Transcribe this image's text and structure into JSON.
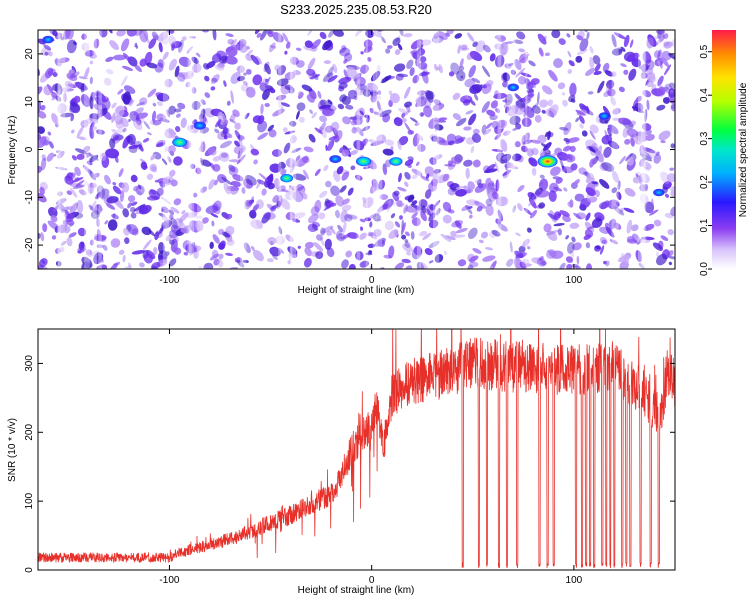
{
  "title": "S233.2025.235.08.53.R20",
  "colors": {
    "snr_line": "#e8302a",
    "frame": "#000000",
    "speckle_base": "#7a3cf0"
  },
  "chart_data": [
    {
      "type": "heatmap",
      "title": "S233.2025.235.08.53.R20",
      "xlabel": "Height of straight line (km)",
      "ylabel": "Frequency (Hz)",
      "xlim": [
        -165,
        150
      ],
      "ylim": [
        -25,
        25
      ],
      "xticks": [
        -100,
        0,
        100
      ],
      "yticks": [
        -20,
        -10,
        0,
        10,
        20
      ],
      "colorbar": {
        "label": "Normalized spectral amplitude",
        "range": [
          0.0,
          0.55
        ],
        "ticks": [
          0.0,
          0.1,
          0.2,
          0.3,
          0.4,
          0.5
        ],
        "tick_labels": [
          "0.0",
          "0.1",
          "0.2",
          "0.3",
          "0.4",
          "0.5"
        ],
        "placement": "right"
      },
      "hotspots": [
        {
          "x": -95,
          "y": 1.5,
          "value": 0.28
        },
        {
          "x": -4,
          "y": -2.5,
          "value": 0.3
        },
        {
          "x": 12,
          "y": -2.5,
          "value": 0.22
        },
        {
          "x": 87,
          "y": -2.5,
          "value": 0.5
        },
        {
          "x": -42,
          "y": -6,
          "value": 0.2
        },
        {
          "x": -85,
          "y": 5,
          "value": 0.18
        },
        {
          "x": -18,
          "y": -2,
          "value": 0.17
        },
        {
          "x": 70,
          "y": 13,
          "value": 0.15
        },
        {
          "x": 115,
          "y": 7,
          "value": 0.13
        },
        {
          "x": 142,
          "y": -9,
          "value": 0.14
        },
        {
          "x": -160,
          "y": 23,
          "value": 0.14
        }
      ]
    },
    {
      "type": "line",
      "xlabel": "Height of straight line (km)",
      "ylabel": "SNR (10 * v/v)",
      "xlim": [
        -165,
        150
      ],
      "ylim": [
        0,
        350
      ],
      "xticks": [
        -100,
        0,
        100
      ],
      "yticks": [
        0,
        100,
        200,
        300
      ],
      "trend": {
        "x": [
          -165,
          -100,
          -95,
          -70,
          -40,
          -20,
          -15,
          -10,
          0,
          3,
          6,
          10,
          20,
          30,
          40,
          50,
          70,
          100,
          120,
          125,
          135,
          140,
          143,
          146,
          150
        ],
        "y": [
          18,
          18,
          25,
          45,
          80,
          110,
          135,
          175,
          210,
          240,
          180,
          255,
          275,
          280,
          290,
          300,
          295,
          290,
          295,
          280,
          255,
          230,
          225,
          285,
          270
        ]
      },
      "dropouts": [
        45,
        53,
        57,
        63,
        67,
        72,
        83,
        87,
        90,
        101,
        104,
        106,
        108,
        110,
        114,
        116,
        118,
        120,
        124,
        126,
        128,
        133,
        138,
        142
      ]
    }
  ]
}
